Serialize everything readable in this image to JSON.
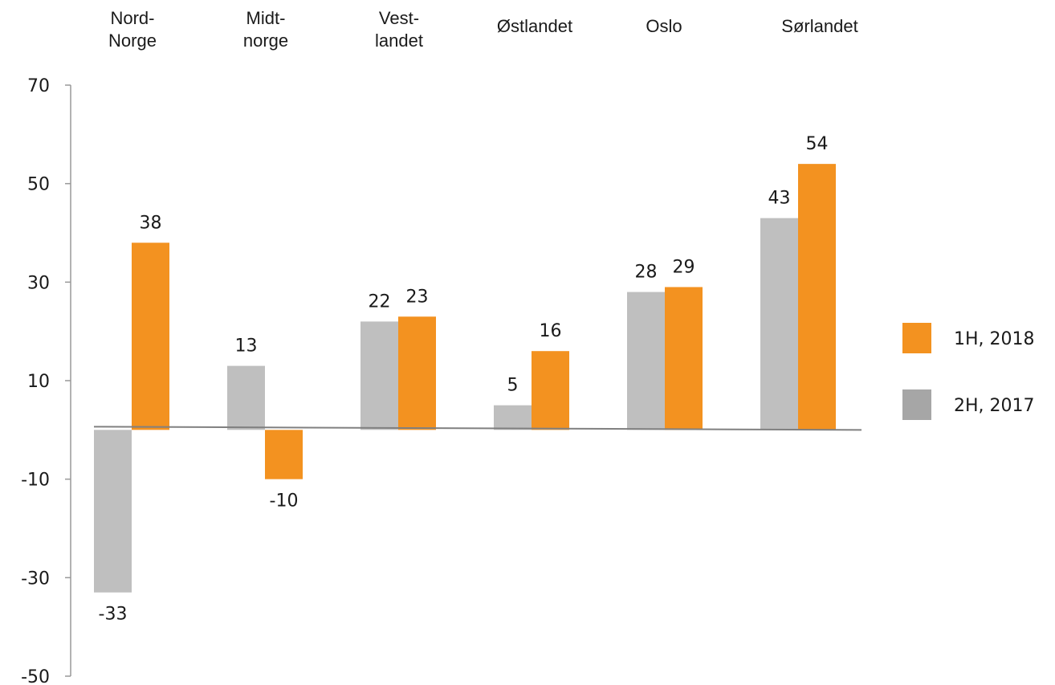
{
  "chart_data": {
    "type": "bar",
    "categories": [
      [
        "Nord-",
        "Norge"
      ],
      [
        "Midt-",
        "norge"
      ],
      [
        "Vest-",
        "landet"
      ],
      [
        "Østlandet"
      ],
      [
        "Oslo"
      ],
      [
        "Sørlandet"
      ]
    ],
    "series": [
      {
        "name": "2H, 2017",
        "values": [
          -33,
          13,
          22,
          5,
          28,
          43
        ],
        "color": "#bfbfbf",
        "legend_color": "#a6a6a6"
      },
      {
        "name": "1H, 2018",
        "values": [
          38,
          -10,
          23,
          16,
          29,
          54
        ],
        "color": "#f39220",
        "legend_color": "#f39220"
      }
    ],
    "yticks": [
      70,
      50,
      30,
      10,
      -10,
      -30,
      -50
    ],
    "ylim": [
      -50,
      70
    ],
    "title": "",
    "xlabel": "",
    "ylabel": "",
    "category_axis_position": "top",
    "legend_position": "right",
    "grid": false
  }
}
